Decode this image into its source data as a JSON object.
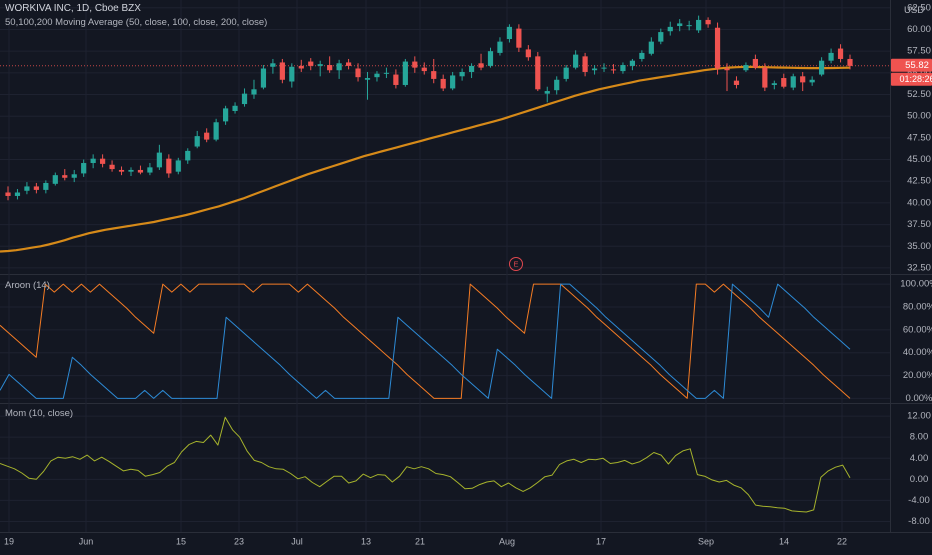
{
  "header": {
    "symbol": "WORKIVA INC, 1D, Cboe BZX",
    "ma_label": "50,100,200 Moving Average (50, close, 100, close, 200, close)",
    "currency": "USD",
    "price_tag": "55.82",
    "countdown_tag": "01:28:26"
  },
  "panes": {
    "aroon_label": "Aroon (14)",
    "mom_label": "Mom (10, close)",
    "event_marker": "E"
  },
  "colors": {
    "background": "#131722",
    "up": "#26a69a",
    "down": "#ef5350",
    "ma": "#d68a19",
    "aroon_up": "#f57c24",
    "aroon_down": "#2d8bd6",
    "momentum": "#a6b32c",
    "grid": "#1e2230",
    "pane_border": "#2a2e39"
  },
  "chart_data": [
    {
      "type": "candlestick",
      "title": "WORKIVA INC, 1D, Cboe BZX",
      "y_axis_labels": [
        "62.50",
        "60.00",
        "57.50",
        "55.00",
        "52.50",
        "50.00",
        "47.50",
        "45.00",
        "42.50",
        "40.00",
        "37.50",
        "35.00",
        "32.50"
      ],
      "ylim": [
        31.8,
        63.4
      ],
      "x_axis_labels": [
        "19",
        "Jun",
        "15",
        "23",
        "Jul",
        "13",
        "21",
        "Aug",
        "17",
        "Sep",
        "14",
        "22"
      ],
      "last_price": 55.82,
      "candles": [
        {
          "o": 41.2,
          "h": 41.9,
          "l": 40.3,
          "c": 40.8
        },
        {
          "o": 40.8,
          "h": 41.6,
          "l": 40.4,
          "c": 41.2
        },
        {
          "o": 41.4,
          "h": 42.4,
          "l": 41.0,
          "c": 41.9
        },
        {
          "o": 41.9,
          "h": 42.3,
          "l": 41.1,
          "c": 41.5
        },
        {
          "o": 41.5,
          "h": 42.6,
          "l": 41.1,
          "c": 42.3
        },
        {
          "o": 42.2,
          "h": 43.5,
          "l": 42.0,
          "c": 43.2
        },
        {
          "o": 43.2,
          "h": 43.9,
          "l": 42.6,
          "c": 42.9
        },
        {
          "o": 42.9,
          "h": 43.8,
          "l": 42.4,
          "c": 43.3
        },
        {
          "o": 43.4,
          "h": 45.0,
          "l": 43.0,
          "c": 44.6
        },
        {
          "o": 44.6,
          "h": 45.6,
          "l": 44.0,
          "c": 45.1
        },
        {
          "o": 45.1,
          "h": 45.6,
          "l": 44.1,
          "c": 44.5
        },
        {
          "o": 44.4,
          "h": 44.9,
          "l": 43.6,
          "c": 43.9
        },
        {
          "o": 43.8,
          "h": 44.2,
          "l": 43.2,
          "c": 43.6
        },
        {
          "o": 43.6,
          "h": 44.1,
          "l": 43.1,
          "c": 43.8
        },
        {
          "o": 43.8,
          "h": 44.3,
          "l": 43.3,
          "c": 43.5
        },
        {
          "o": 43.5,
          "h": 44.6,
          "l": 43.2,
          "c": 44.1
        },
        {
          "o": 44.1,
          "h": 46.7,
          "l": 43.8,
          "c": 45.8
        },
        {
          "o": 45.1,
          "h": 45.6,
          "l": 42.9,
          "c": 43.4
        },
        {
          "o": 43.6,
          "h": 45.2,
          "l": 43.3,
          "c": 44.9
        },
        {
          "o": 44.9,
          "h": 46.3,
          "l": 44.5,
          "c": 46.0
        },
        {
          "o": 46.5,
          "h": 48.3,
          "l": 46.3,
          "c": 47.7
        },
        {
          "o": 48.1,
          "h": 48.6,
          "l": 47.0,
          "c": 47.3
        },
        {
          "o": 47.3,
          "h": 49.7,
          "l": 47.1,
          "c": 49.3
        },
        {
          "o": 49.4,
          "h": 51.2,
          "l": 49.0,
          "c": 50.9
        },
        {
          "o": 50.6,
          "h": 51.6,
          "l": 50.3,
          "c": 51.2
        },
        {
          "o": 51.4,
          "h": 53.2,
          "l": 51.1,
          "c": 52.6
        },
        {
          "o": 52.5,
          "h": 54.2,
          "l": 52.0,
          "c": 53.1
        },
        {
          "o": 53.3,
          "h": 55.9,
          "l": 53.1,
          "c": 55.5
        },
        {
          "o": 55.7,
          "h": 56.6,
          "l": 54.9,
          "c": 56.1
        },
        {
          "o": 56.2,
          "h": 56.6,
          "l": 53.8,
          "c": 54.2
        },
        {
          "o": 54.0,
          "h": 56.1,
          "l": 53.3,
          "c": 55.7
        },
        {
          "o": 55.8,
          "h": 56.5,
          "l": 55.1,
          "c": 55.5
        },
        {
          "o": 56.3,
          "h": 56.7,
          "l": 55.3,
          "c": 55.8
        },
        {
          "o": 55.8,
          "h": 56.4,
          "l": 54.6,
          "c": 56.0
        },
        {
          "o": 55.9,
          "h": 56.9,
          "l": 55.0,
          "c": 55.3
        },
        {
          "o": 55.3,
          "h": 56.5,
          "l": 54.3,
          "c": 56.1
        },
        {
          "o": 56.2,
          "h": 56.6,
          "l": 55.4,
          "c": 55.8
        },
        {
          "o": 55.5,
          "h": 56.1,
          "l": 54.0,
          "c": 54.5
        },
        {
          "o": 54.2,
          "h": 55.1,
          "l": 51.9,
          "c": 54.4
        },
        {
          "o": 54.5,
          "h": 55.2,
          "l": 54.0,
          "c": 54.9
        },
        {
          "o": 54.9,
          "h": 55.6,
          "l": 54.4,
          "c": 55.0
        },
        {
          "o": 54.8,
          "h": 55.4,
          "l": 53.2,
          "c": 53.6
        },
        {
          "o": 53.6,
          "h": 56.6,
          "l": 53.4,
          "c": 56.3
        },
        {
          "o": 56.3,
          "h": 56.9,
          "l": 55.0,
          "c": 55.6
        },
        {
          "o": 55.6,
          "h": 56.2,
          "l": 54.8,
          "c": 55.2
        },
        {
          "o": 55.2,
          "h": 56.6,
          "l": 53.8,
          "c": 54.3
        },
        {
          "o": 54.3,
          "h": 54.8,
          "l": 52.9,
          "c": 53.2
        },
        {
          "o": 53.2,
          "h": 55.1,
          "l": 53.0,
          "c": 54.7
        },
        {
          "o": 54.6,
          "h": 55.5,
          "l": 54.1,
          "c": 55.1
        },
        {
          "o": 55.1,
          "h": 56.1,
          "l": 54.4,
          "c": 55.8
        },
        {
          "o": 56.1,
          "h": 57.2,
          "l": 55.3,
          "c": 55.6
        },
        {
          "o": 55.8,
          "h": 57.9,
          "l": 55.6,
          "c": 57.5
        },
        {
          "o": 57.3,
          "h": 59.1,
          "l": 57.0,
          "c": 58.6
        },
        {
          "o": 58.9,
          "h": 60.6,
          "l": 58.5,
          "c": 60.3
        },
        {
          "o": 60.1,
          "h": 60.6,
          "l": 57.4,
          "c": 57.9
        },
        {
          "o": 57.7,
          "h": 58.2,
          "l": 56.4,
          "c": 56.8
        },
        {
          "o": 56.9,
          "h": 57.4,
          "l": 52.9,
          "c": 53.1
        },
        {
          "o": 52.6,
          "h": 53.4,
          "l": 51.6,
          "c": 52.9
        },
        {
          "o": 53.0,
          "h": 54.6,
          "l": 52.5,
          "c": 54.2
        },
        {
          "o": 54.3,
          "h": 55.9,
          "l": 54.0,
          "c": 55.6
        },
        {
          "o": 55.6,
          "h": 57.6,
          "l": 55.4,
          "c": 57.1
        },
        {
          "o": 56.9,
          "h": 57.3,
          "l": 54.6,
          "c": 55.1
        },
        {
          "o": 55.3,
          "h": 55.9,
          "l": 54.8,
          "c": 55.5
        },
        {
          "o": 55.5,
          "h": 56.1,
          "l": 55.1,
          "c": 55.6
        },
        {
          "o": 55.4,
          "h": 56.0,
          "l": 54.9,
          "c": 55.3
        },
        {
          "o": 55.2,
          "h": 56.2,
          "l": 54.9,
          "c": 55.9
        },
        {
          "o": 55.8,
          "h": 56.6,
          "l": 55.3,
          "c": 56.4
        },
        {
          "o": 56.6,
          "h": 57.6,
          "l": 56.3,
          "c": 57.3
        },
        {
          "o": 57.2,
          "h": 59.1,
          "l": 57.0,
          "c": 58.6
        },
        {
          "o": 58.6,
          "h": 60.1,
          "l": 58.3,
          "c": 59.7
        },
        {
          "o": 59.8,
          "h": 60.9,
          "l": 59.3,
          "c": 60.3
        },
        {
          "o": 60.4,
          "h": 61.2,
          "l": 59.8,
          "c": 60.7
        },
        {
          "o": 60.4,
          "h": 61.0,
          "l": 59.9,
          "c": 60.5
        },
        {
          "o": 59.9,
          "h": 61.6,
          "l": 59.6,
          "c": 61.1
        },
        {
          "o": 61.1,
          "h": 61.4,
          "l": 60.2,
          "c": 60.6
        },
        {
          "o": 60.2,
          "h": 60.8,
          "l": 54.8,
          "c": 55.5
        },
        {
          "o": 55.5,
          "h": 56.1,
          "l": 52.9,
          "c": 55.3
        },
        {
          "o": 54.1,
          "h": 54.6,
          "l": 53.2,
          "c": 53.6
        },
        {
          "o": 55.3,
          "h": 56.2,
          "l": 55.1,
          "c": 55.9
        },
        {
          "o": 56.6,
          "h": 57.1,
          "l": 55.4,
          "c": 55.6
        },
        {
          "o": 55.6,
          "h": 56.1,
          "l": 52.9,
          "c": 53.3
        },
        {
          "o": 53.6,
          "h": 54.1,
          "l": 53.1,
          "c": 53.8
        },
        {
          "o": 54.4,
          "h": 54.9,
          "l": 53.2,
          "c": 53.4
        },
        {
          "o": 53.3,
          "h": 54.9,
          "l": 53.0,
          "c": 54.6
        },
        {
          "o": 54.6,
          "h": 55.1,
          "l": 52.9,
          "c": 53.9
        },
        {
          "o": 53.9,
          "h": 54.6,
          "l": 53.5,
          "c": 54.2
        },
        {
          "o": 54.8,
          "h": 56.8,
          "l": 54.6,
          "c": 56.4
        },
        {
          "o": 56.4,
          "h": 57.8,
          "l": 56.1,
          "c": 57.3
        },
        {
          "o": 57.8,
          "h": 58.3,
          "l": 56.2,
          "c": 56.6
        },
        {
          "o": 56.6,
          "h": 57.1,
          "l": 55.4,
          "c": 55.8
        }
      ],
      "moving_average": [
        34.4,
        34.45,
        34.55,
        34.7,
        34.85,
        35.0,
        35.2,
        35.45,
        35.7,
        36.0,
        36.25,
        36.5,
        36.7,
        36.9,
        37.05,
        37.2,
        37.35,
        37.5,
        37.65,
        37.8,
        38.0,
        38.2,
        38.4,
        38.6,
        38.85,
        39.1,
        39.35,
        39.6,
        39.9,
        40.2,
        40.5,
        40.85,
        41.2,
        41.55,
        41.9,
        42.25,
        42.6,
        42.95,
        43.3,
        43.6,
        43.9,
        44.2,
        44.5,
        44.8,
        45.1,
        45.4,
        45.65,
        45.9,
        46.15,
        46.4,
        46.65,
        46.9,
        47.15,
        47.4,
        47.65,
        47.9,
        48.15,
        48.4,
        48.65,
        48.9,
        49.15,
        49.4,
        49.65,
        49.95,
        50.25,
        50.55,
        50.85,
        51.15,
        51.45,
        51.75,
        52.05,
        52.35,
        52.6,
        52.85,
        53.1,
        53.3,
        53.5,
        53.7,
        53.9,
        54.1,
        54.25,
        54.4,
        54.55,
        54.7,
        54.85,
        55.0,
        55.15,
        55.3,
        55.42,
        55.52,
        55.6,
        55.65,
        55.68,
        55.68,
        55.66,
        55.64,
        55.62,
        55.6,
        55.58,
        55.56,
        55.55,
        55.55,
        55.55,
        55.56,
        55.58,
        55.6
      ]
    },
    {
      "type": "line",
      "title": "Aroon (14)",
      "y_axis_labels": [
        "100.00%",
        "80.00%",
        "60.00%",
        "40.00%",
        "20.00%",
        "0.00%"
      ],
      "ylim": [
        -4,
        108
      ],
      "series": [
        {
          "values": [
            64,
            57,
            50,
            43,
            36,
            100,
            93,
            100,
            93,
            100,
            93,
            100,
            93,
            86,
            79,
            71,
            64,
            57,
            100,
            93,
            100,
            93,
            100,
            100,
            100,
            100,
            100,
            100,
            93,
            100,
            100,
            100,
            100,
            93,
            100,
            93,
            86,
            79,
            71,
            64,
            57,
            50,
            43,
            36,
            29,
            21,
            14,
            7,
            0,
            0,
            0,
            0,
            100,
            93,
            86,
            79,
            71,
            64,
            57,
            100,
            100,
            100,
            100,
            93,
            86,
            79,
            71,
            64,
            57,
            50,
            43,
            36,
            29,
            21,
            14,
            7,
            0,
            100,
            100,
            93,
            100,
            93,
            86,
            79,
            71,
            64,
            57,
            50,
            43,
            36,
            29,
            21,
            14,
            7,
            0
          ]
        },
        {
          "values": [
            7,
            21,
            14,
            7,
            0,
            0,
            0,
            0,
            36,
            29,
            21,
            14,
            7,
            0,
            0,
            0,
            7,
            0,
            7,
            0,
            0,
            0,
            0,
            0,
            0,
            71,
            64,
            57,
            50,
            43,
            36,
            29,
            21,
            14,
            7,
            0,
            7,
            0,
            0,
            0,
            0,
            0,
            0,
            0,
            71,
            64,
            57,
            50,
            43,
            36,
            29,
            21,
            14,
            7,
            0,
            43,
            36,
            29,
            21,
            14,
            7,
            0,
            100,
            100,
            93,
            86,
            79,
            71,
            64,
            57,
            50,
            43,
            36,
            29,
            21,
            14,
            7,
            0,
            0,
            7,
            0,
            100,
            93,
            86,
            79,
            71,
            100,
            93,
            86,
            79,
            71,
            64,
            57,
            50,
            43
          ]
        }
      ]
    },
    {
      "type": "line",
      "title": "Mom (10, close)",
      "y_axis_labels": [
        "12.00",
        "8.00",
        "4.00",
        "0.00",
        "-4.00",
        "-8.00"
      ],
      "ylim": [
        -10,
        14.3
      ],
      "series": [
        {
          "values": [
            3.0,
            2.5,
            2.0,
            1.2,
            0.2,
            0.0,
            1.5,
            3.5,
            4.2,
            4.0,
            4.3,
            3.8,
            4.6,
            3.5,
            4.2,
            3.4,
            2.5,
            1.6,
            1.9,
            1.7,
            0.6,
            0.9,
            1.3,
            2.5,
            3.2,
            5.2,
            6.6,
            7.2,
            7.0,
            8.4,
            6.5,
            11.8,
            9.4,
            8.0,
            5.4,
            3.6,
            3.2,
            2.4,
            2.0,
            1.9,
            1.1,
            0.1,
            0.5,
            -0.6,
            -1.4,
            -0.4,
            0.6,
            0.6,
            -0.7,
            -0.3,
            1.0,
            0.3,
            0.9,
            0.8,
            -0.5,
            0.6,
            2.4,
            2.0,
            2.4,
            2.0,
            1.1,
            0.9,
            0.5,
            -0.6,
            -1.8,
            -1.7,
            -1.0,
            -0.5,
            -0.3,
            -1.4,
            -0.7,
            -1.6,
            -2.3,
            -1.6,
            -0.6,
            0.5,
            0.8,
            2.8,
            3.5,
            3.8,
            3.2,
            3.8,
            3.7,
            4.0,
            3.0,
            3.2,
            3.6,
            2.9,
            3.3,
            4.1,
            5.1,
            4.6,
            2.9,
            4.5,
            5.4,
            5.8,
            0.9,
            0.6,
            -0.1,
            -0.5,
            -0.2,
            -1.1,
            -1.6,
            -2.9,
            -4.9,
            -5.1,
            -5.2,
            -5.4,
            -5.5,
            -6.0,
            -6.1,
            -6.2,
            -5.8,
            0.4,
            1.6,
            2.3,
            2.7,
            0.3
          ]
        }
      ]
    }
  ]
}
